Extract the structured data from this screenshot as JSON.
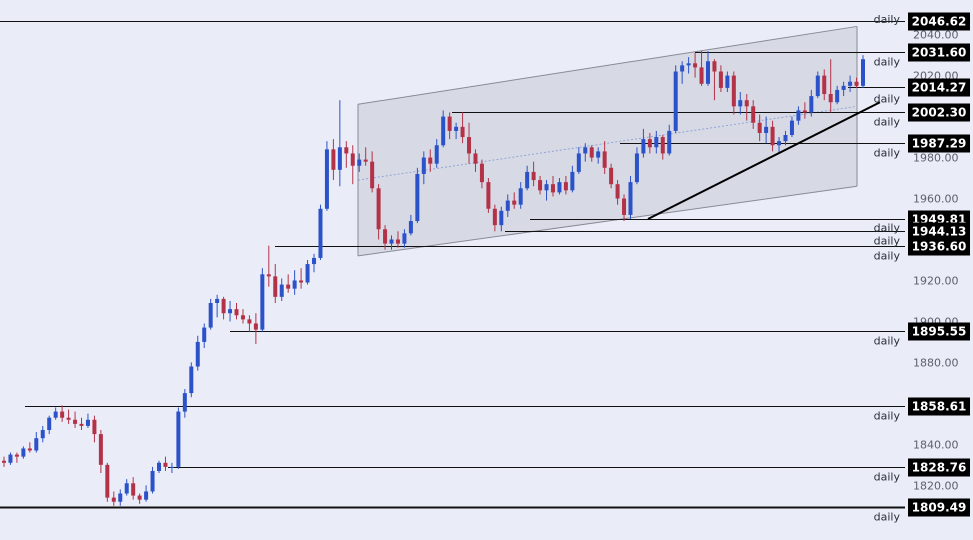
{
  "chart_data": {
    "type": "candlestick",
    "timeframe_label": "daily",
    "ylim": [
      1806,
      2053
    ],
    "y_ticks": [
      1820,
      1840,
      1860,
      1880,
      1900,
      1920,
      1940,
      1960,
      1980,
      2000,
      2020,
      2040
    ],
    "colors": {
      "background": "#eaedf7",
      "up": "#2b52c8",
      "down": "#b33248",
      "level_line": "#111111",
      "label_bg": "#000000",
      "label_text": "#ffffff",
      "channel_fill": "#d6d8e3",
      "channel_edge": "#888a95",
      "midline": "#8fa6d8",
      "trendline": "#000000"
    },
    "levels": [
      {
        "price": 2046.62,
        "label": "2046.62",
        "tag": ""
      },
      {
        "price": 2031.6,
        "label": "2031.60",
        "tag": "daily"
      },
      {
        "price": 2014.27,
        "label": "2014.27",
        "tag": "daily"
      },
      {
        "price": 2002.3,
        "label": "2002.30",
        "tag": "daily"
      },
      {
        "price": 1987.29,
        "label": "1987.29",
        "tag": "daily"
      },
      {
        "price": 1949.81,
        "label": "1949.81",
        "tag": "daily"
      },
      {
        "price": 1944.13,
        "label": "1944.13",
        "tag": "daily"
      },
      {
        "price": 1936.6,
        "label": "1936.60",
        "tag": "daily"
      },
      {
        "price": 1895.55,
        "label": "1895.55",
        "tag": "daily"
      },
      {
        "price": 1858.61,
        "label": "1858.61",
        "tag": "daily"
      },
      {
        "price": 1828.76,
        "label": "1828.76",
        "tag": "daily"
      },
      {
        "price": 1809.49,
        "label": "1809.49",
        "tag": "daily"
      }
    ],
    "channel": {
      "upper": [
        2006,
        2044
      ],
      "lower": [
        1932,
        1966
      ]
    },
    "trendline": [
      1950,
      2007
    ],
    "candles": [
      {
        "o": 1832,
        "h": 1834,
        "l": 1829,
        "c": 1831
      },
      {
        "o": 1831,
        "h": 1836,
        "l": 1830,
        "c": 1835
      },
      {
        "o": 1835,
        "h": 1836,
        "l": 1831,
        "c": 1834
      },
      {
        "o": 1834,
        "h": 1839,
        "l": 1833,
        "c": 1838
      },
      {
        "o": 1838,
        "h": 1841,
        "l": 1836,
        "c": 1837
      },
      {
        "o": 1837,
        "h": 1846,
        "l": 1836,
        "c": 1843
      },
      {
        "o": 1843,
        "h": 1849,
        "l": 1841,
        "c": 1847
      },
      {
        "o": 1847,
        "h": 1854,
        "l": 1845,
        "c": 1853
      },
      {
        "o": 1853,
        "h": 1858,
        "l": 1852,
        "c": 1856
      },
      {
        "o": 1856,
        "h": 1859,
        "l": 1851,
        "c": 1853
      },
      {
        "o": 1853,
        "h": 1857,
        "l": 1850,
        "c": 1852
      },
      {
        "o": 1852,
        "h": 1856,
        "l": 1848,
        "c": 1850
      },
      {
        "o": 1850,
        "h": 1853,
        "l": 1847,
        "c": 1849
      },
      {
        "o": 1849,
        "h": 1855,
        "l": 1848,
        "c": 1852
      },
      {
        "o": 1852,
        "h": 1854,
        "l": 1841,
        "c": 1845
      },
      {
        "o": 1845,
        "h": 1847,
        "l": 1826,
        "c": 1830
      },
      {
        "o": 1830,
        "h": 1831,
        "l": 1812,
        "c": 1814
      },
      {
        "o": 1814,
        "h": 1817,
        "l": 1810,
        "c": 1812
      },
      {
        "o": 1812,
        "h": 1818,
        "l": 1810,
        "c": 1816
      },
      {
        "o": 1816,
        "h": 1823,
        "l": 1815,
        "c": 1821
      },
      {
        "o": 1821,
        "h": 1824,
        "l": 1813,
        "c": 1815
      },
      {
        "o": 1815,
        "h": 1816,
        "l": 1811,
        "c": 1813
      },
      {
        "o": 1813,
        "h": 1820,
        "l": 1812,
        "c": 1817
      },
      {
        "o": 1817,
        "h": 1829,
        "l": 1816,
        "c": 1827
      },
      {
        "o": 1827,
        "h": 1832,
        "l": 1826,
        "c": 1831
      },
      {
        "o": 1831,
        "h": 1834,
        "l": 1827,
        "c": 1829
      },
      {
        "o": 1829,
        "h": 1831,
        "l": 1826,
        "c": 1829
      },
      {
        "o": 1829,
        "h": 1858,
        "l": 1828,
        "c": 1856
      },
      {
        "o": 1856,
        "h": 1867,
        "l": 1853,
        "c": 1865
      },
      {
        "o": 1865,
        "h": 1880,
        "l": 1863,
        "c": 1878
      },
      {
        "o": 1878,
        "h": 1893,
        "l": 1876,
        "c": 1890
      },
      {
        "o": 1890,
        "h": 1899,
        "l": 1887,
        "c": 1897
      },
      {
        "o": 1897,
        "h": 1911,
        "l": 1896,
        "c": 1909
      },
      {
        "o": 1909,
        "h": 1913,
        "l": 1902,
        "c": 1911
      },
      {
        "o": 1911,
        "h": 1912,
        "l": 1901,
        "c": 1904
      },
      {
        "o": 1904,
        "h": 1910,
        "l": 1900,
        "c": 1906
      },
      {
        "o": 1906,
        "h": 1909,
        "l": 1901,
        "c": 1903
      },
      {
        "o": 1903,
        "h": 1906,
        "l": 1899,
        "c": 1901
      },
      {
        "o": 1901,
        "h": 1903,
        "l": 1895,
        "c": 1899
      },
      {
        "o": 1899,
        "h": 1904,
        "l": 1889,
        "c": 1896
      },
      {
        "o": 1896,
        "h": 1926,
        "l": 1895,
        "c": 1923
      },
      {
        "o": 1923,
        "h": 1937,
        "l": 1917,
        "c": 1922
      },
      {
        "o": 1922,
        "h": 1928,
        "l": 1909,
        "c": 1912
      },
      {
        "o": 1912,
        "h": 1921,
        "l": 1910,
        "c": 1918
      },
      {
        "o": 1918,
        "h": 1923,
        "l": 1914,
        "c": 1916
      },
      {
        "o": 1916,
        "h": 1925,
        "l": 1913,
        "c": 1920
      },
      {
        "o": 1920,
        "h": 1926,
        "l": 1916,
        "c": 1919
      },
      {
        "o": 1919,
        "h": 1930,
        "l": 1918,
        "c": 1928
      },
      {
        "o": 1928,
        "h": 1933,
        "l": 1924,
        "c": 1931
      },
      {
        "o": 1931,
        "h": 1957,
        "l": 1930,
        "c": 1955
      },
      {
        "o": 1955,
        "h": 1988,
        "l": 1954,
        "c": 1984
      },
      {
        "o": 1984,
        "h": 1989,
        "l": 1969,
        "c": 1974
      },
      {
        "o": 1974,
        "h": 2008,
        "l": 1966,
        "c": 1985
      },
      {
        "o": 1985,
        "h": 1988,
        "l": 1975,
        "c": 1982
      },
      {
        "o": 1982,
        "h": 1986,
        "l": 1967,
        "c": 1976
      },
      {
        "o": 1976,
        "h": 1982,
        "l": 1973,
        "c": 1979
      },
      {
        "o": 1979,
        "h": 1985,
        "l": 1976,
        "c": 1978
      },
      {
        "o": 1978,
        "h": 1983,
        "l": 1963,
        "c": 1965
      },
      {
        "o": 1965,
        "h": 1967,
        "l": 1940,
        "c": 1945
      },
      {
        "o": 1945,
        "h": 1947,
        "l": 1935,
        "c": 1938
      },
      {
        "o": 1938,
        "h": 1942,
        "l": 1935,
        "c": 1940
      },
      {
        "o": 1940,
        "h": 1944,
        "l": 1936,
        "c": 1938
      },
      {
        "o": 1938,
        "h": 1945,
        "l": 1936,
        "c": 1943
      },
      {
        "o": 1943,
        "h": 1952,
        "l": 1942,
        "c": 1949
      },
      {
        "o": 1949,
        "h": 1975,
        "l": 1948,
        "c": 1972
      },
      {
        "o": 1972,
        "h": 1983,
        "l": 1967,
        "c": 1980
      },
      {
        "o": 1980,
        "h": 1984,
        "l": 1973,
        "c": 1977
      },
      {
        "o": 1977,
        "h": 1989,
        "l": 1975,
        "c": 1986
      },
      {
        "o": 1986,
        "h": 2003,
        "l": 1985,
        "c": 2000
      },
      {
        "o": 2000,
        "h": 2002,
        "l": 1989,
        "c": 1993
      },
      {
        "o": 1993,
        "h": 1997,
        "l": 1989,
        "c": 1995
      },
      {
        "o": 1995,
        "h": 2002,
        "l": 1987,
        "c": 1990
      },
      {
        "o": 1990,
        "h": 1997,
        "l": 1977,
        "c": 1982
      },
      {
        "o": 1982,
        "h": 1984,
        "l": 1973,
        "c": 1977
      },
      {
        "o": 1977,
        "h": 1979,
        "l": 1965,
        "c": 1968
      },
      {
        "o": 1968,
        "h": 1970,
        "l": 1953,
        "c": 1955
      },
      {
        "o": 1955,
        "h": 1957,
        "l": 1944,
        "c": 1947
      },
      {
        "o": 1947,
        "h": 1956,
        "l": 1944,
        "c": 1954
      },
      {
        "o": 1954,
        "h": 1962,
        "l": 1951,
        "c": 1959
      },
      {
        "o": 1959,
        "h": 1963,
        "l": 1955,
        "c": 1957
      },
      {
        "o": 1957,
        "h": 1968,
        "l": 1955,
        "c": 1965
      },
      {
        "o": 1965,
        "h": 1976,
        "l": 1964,
        "c": 1973
      },
      {
        "o": 1973,
        "h": 1978,
        "l": 1966,
        "c": 1969
      },
      {
        "o": 1969,
        "h": 1971,
        "l": 1962,
        "c": 1964
      },
      {
        "o": 1964,
        "h": 1969,
        "l": 1959,
        "c": 1967
      },
      {
        "o": 1967,
        "h": 1971,
        "l": 1961,
        "c": 1963
      },
      {
        "o": 1963,
        "h": 1970,
        "l": 1962,
        "c": 1968
      },
      {
        "o": 1968,
        "h": 1971,
        "l": 1962,
        "c": 1964
      },
      {
        "o": 1964,
        "h": 1976,
        "l": 1963,
        "c": 1973
      },
      {
        "o": 1973,
        "h": 1985,
        "l": 1972,
        "c": 1982
      },
      {
        "o": 1982,
        "h": 1987,
        "l": 1978,
        "c": 1985
      },
      {
        "o": 1985,
        "h": 1986,
        "l": 1978,
        "c": 1980
      },
      {
        "o": 1980,
        "h": 1985,
        "l": 1977,
        "c": 1983
      },
      {
        "o": 1983,
        "h": 1988,
        "l": 1972,
        "c": 1975
      },
      {
        "o": 1975,
        "h": 1977,
        "l": 1965,
        "c": 1967
      },
      {
        "o": 1967,
        "h": 1969,
        "l": 1957,
        "c": 1960
      },
      {
        "o": 1960,
        "h": 1962,
        "l": 1949,
        "c": 1952
      },
      {
        "o": 1952,
        "h": 1971,
        "l": 1950,
        "c": 1968
      },
      {
        "o": 1968,
        "h": 1985,
        "l": 1967,
        "c": 1982
      },
      {
        "o": 1982,
        "h": 1994,
        "l": 1980,
        "c": 1989
      },
      {
        "o": 1989,
        "h": 1992,
        "l": 1982,
        "c": 1985
      },
      {
        "o": 1985,
        "h": 1993,
        "l": 1982,
        "c": 1990
      },
      {
        "o": 1990,
        "h": 1991,
        "l": 1979,
        "c": 1982
      },
      {
        "o": 1982,
        "h": 1996,
        "l": 1981,
        "c": 1993
      },
      {
        "o": 1993,
        "h": 2025,
        "l": 1992,
        "c": 2022
      },
      {
        "o": 2022,
        "h": 2027,
        "l": 2016,
        "c": 2025
      },
      {
        "o": 2025,
        "h": 2029,
        "l": 2021,
        "c": 2026
      },
      {
        "o": 2026,
        "h": 2031,
        "l": 2019,
        "c": 2024
      },
      {
        "o": 2024,
        "h": 2032,
        "l": 2015,
        "c": 2016
      },
      {
        "o": 2016,
        "h": 2032,
        "l": 2015,
        "c": 2027
      },
      {
        "o": 2027,
        "h": 2028,
        "l": 2008,
        "c": 2022
      },
      {
        "o": 2022,
        "h": 2025,
        "l": 2012,
        "c": 2014
      },
      {
        "o": 2014,
        "h": 2022,
        "l": 2012,
        "c": 2020
      },
      {
        "o": 2020,
        "h": 2022,
        "l": 2001,
        "c": 2005
      },
      {
        "o": 2005,
        "h": 2012,
        "l": 2001,
        "c": 2008
      },
      {
        "o": 2008,
        "h": 2011,
        "l": 1998,
        "c": 2005
      },
      {
        "o": 2005,
        "h": 2008,
        "l": 1994,
        "c": 1997
      },
      {
        "o": 1997,
        "h": 2001,
        "l": 1988,
        "c": 1992
      },
      {
        "o": 1992,
        "h": 2000,
        "l": 1987,
        "c": 1995
      },
      {
        "o": 1995,
        "h": 1998,
        "l": 1983,
        "c": 1986
      },
      {
        "o": 1986,
        "h": 1990,
        "l": 1982,
        "c": 1988
      },
      {
        "o": 1988,
        "h": 1993,
        "l": 1986,
        "c": 1991
      },
      {
        "o": 1991,
        "h": 2000,
        "l": 1990,
        "c": 1998
      },
      {
        "o": 1998,
        "h": 2005,
        "l": 1996,
        "c": 2003
      },
      {
        "o": 2003,
        "h": 2007,
        "l": 1999,
        "c": 2002
      },
      {
        "o": 2002,
        "h": 2013,
        "l": 2000,
        "c": 2010
      },
      {
        "o": 2010,
        "h": 2022,
        "l": 2009,
        "c": 2020
      },
      {
        "o": 2020,
        "h": 2023,
        "l": 2008,
        "c": 2011
      },
      {
        "o": 2011,
        "h": 2028,
        "l": 2002,
        "c": 2007
      },
      {
        "o": 2007,
        "h": 2015,
        "l": 2006,
        "c": 2013
      },
      {
        "o": 2013,
        "h": 2017,
        "l": 2010,
        "c": 2015
      },
      {
        "o": 2015,
        "h": 2020,
        "l": 2012,
        "c": 2017
      },
      {
        "o": 2017,
        "h": 2019,
        "l": 2014,
        "c": 2015
      },
      {
        "o": 2015,
        "h": 2030,
        "l": 2014,
        "c": 2028
      }
    ]
  }
}
